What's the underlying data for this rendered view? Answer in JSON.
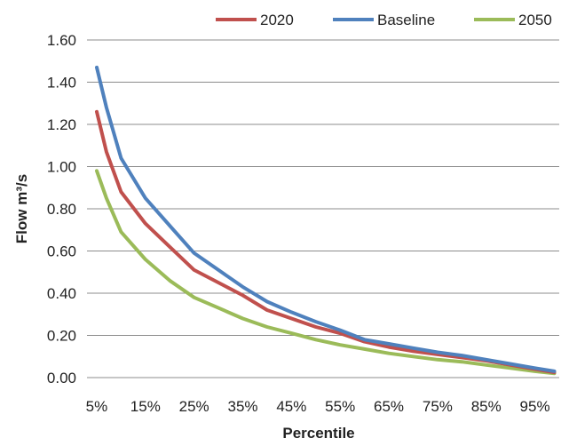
{
  "chart_data": {
    "type": "line",
    "title": "",
    "xlabel": "Percentile",
    "ylabel": "Flow m³/s",
    "x_tick_labels": [
      "5%",
      "15%",
      "25%",
      "35%",
      "45%",
      "55%",
      "65%",
      "75%",
      "85%",
      "95%"
    ],
    "y_tick_labels": [
      "0.00",
      "0.20",
      "0.40",
      "0.60",
      "0.80",
      "1.00",
      "1.20",
      "1.40",
      "1.60"
    ],
    "xlim": [
      3,
      100
    ],
    "ylim": [
      0,
      1.6
    ],
    "grid": "horizontal",
    "legend_position": "top",
    "x": [
      5,
      7,
      10,
      15,
      20,
      25,
      30,
      35,
      40,
      45,
      50,
      55,
      60,
      65,
      70,
      75,
      80,
      85,
      90,
      95,
      99
    ],
    "series": [
      {
        "name": "2020",
        "color": "#c0504d",
        "values": [
          1.26,
          1.07,
          0.88,
          0.73,
          0.62,
          0.51,
          0.45,
          0.39,
          0.32,
          0.28,
          0.24,
          0.21,
          0.17,
          0.145,
          0.125,
          0.11,
          0.095,
          0.08,
          0.06,
          0.04,
          0.025
        ]
      },
      {
        "name": "Baseline",
        "color": "#4f81bd",
        "values": [
          1.47,
          1.28,
          1.04,
          0.85,
          0.72,
          0.59,
          0.51,
          0.43,
          0.36,
          0.31,
          0.265,
          0.225,
          0.18,
          0.16,
          0.14,
          0.12,
          0.105,
          0.085,
          0.065,
          0.045,
          0.03
        ]
      },
      {
        "name": "2050",
        "color": "#9bbb59",
        "values": [
          0.98,
          0.85,
          0.69,
          0.56,
          0.46,
          0.38,
          0.33,
          0.28,
          0.24,
          0.21,
          0.18,
          0.155,
          0.135,
          0.115,
          0.1,
          0.085,
          0.075,
          0.06,
          0.045,
          0.03,
          0.02
        ]
      }
    ]
  }
}
